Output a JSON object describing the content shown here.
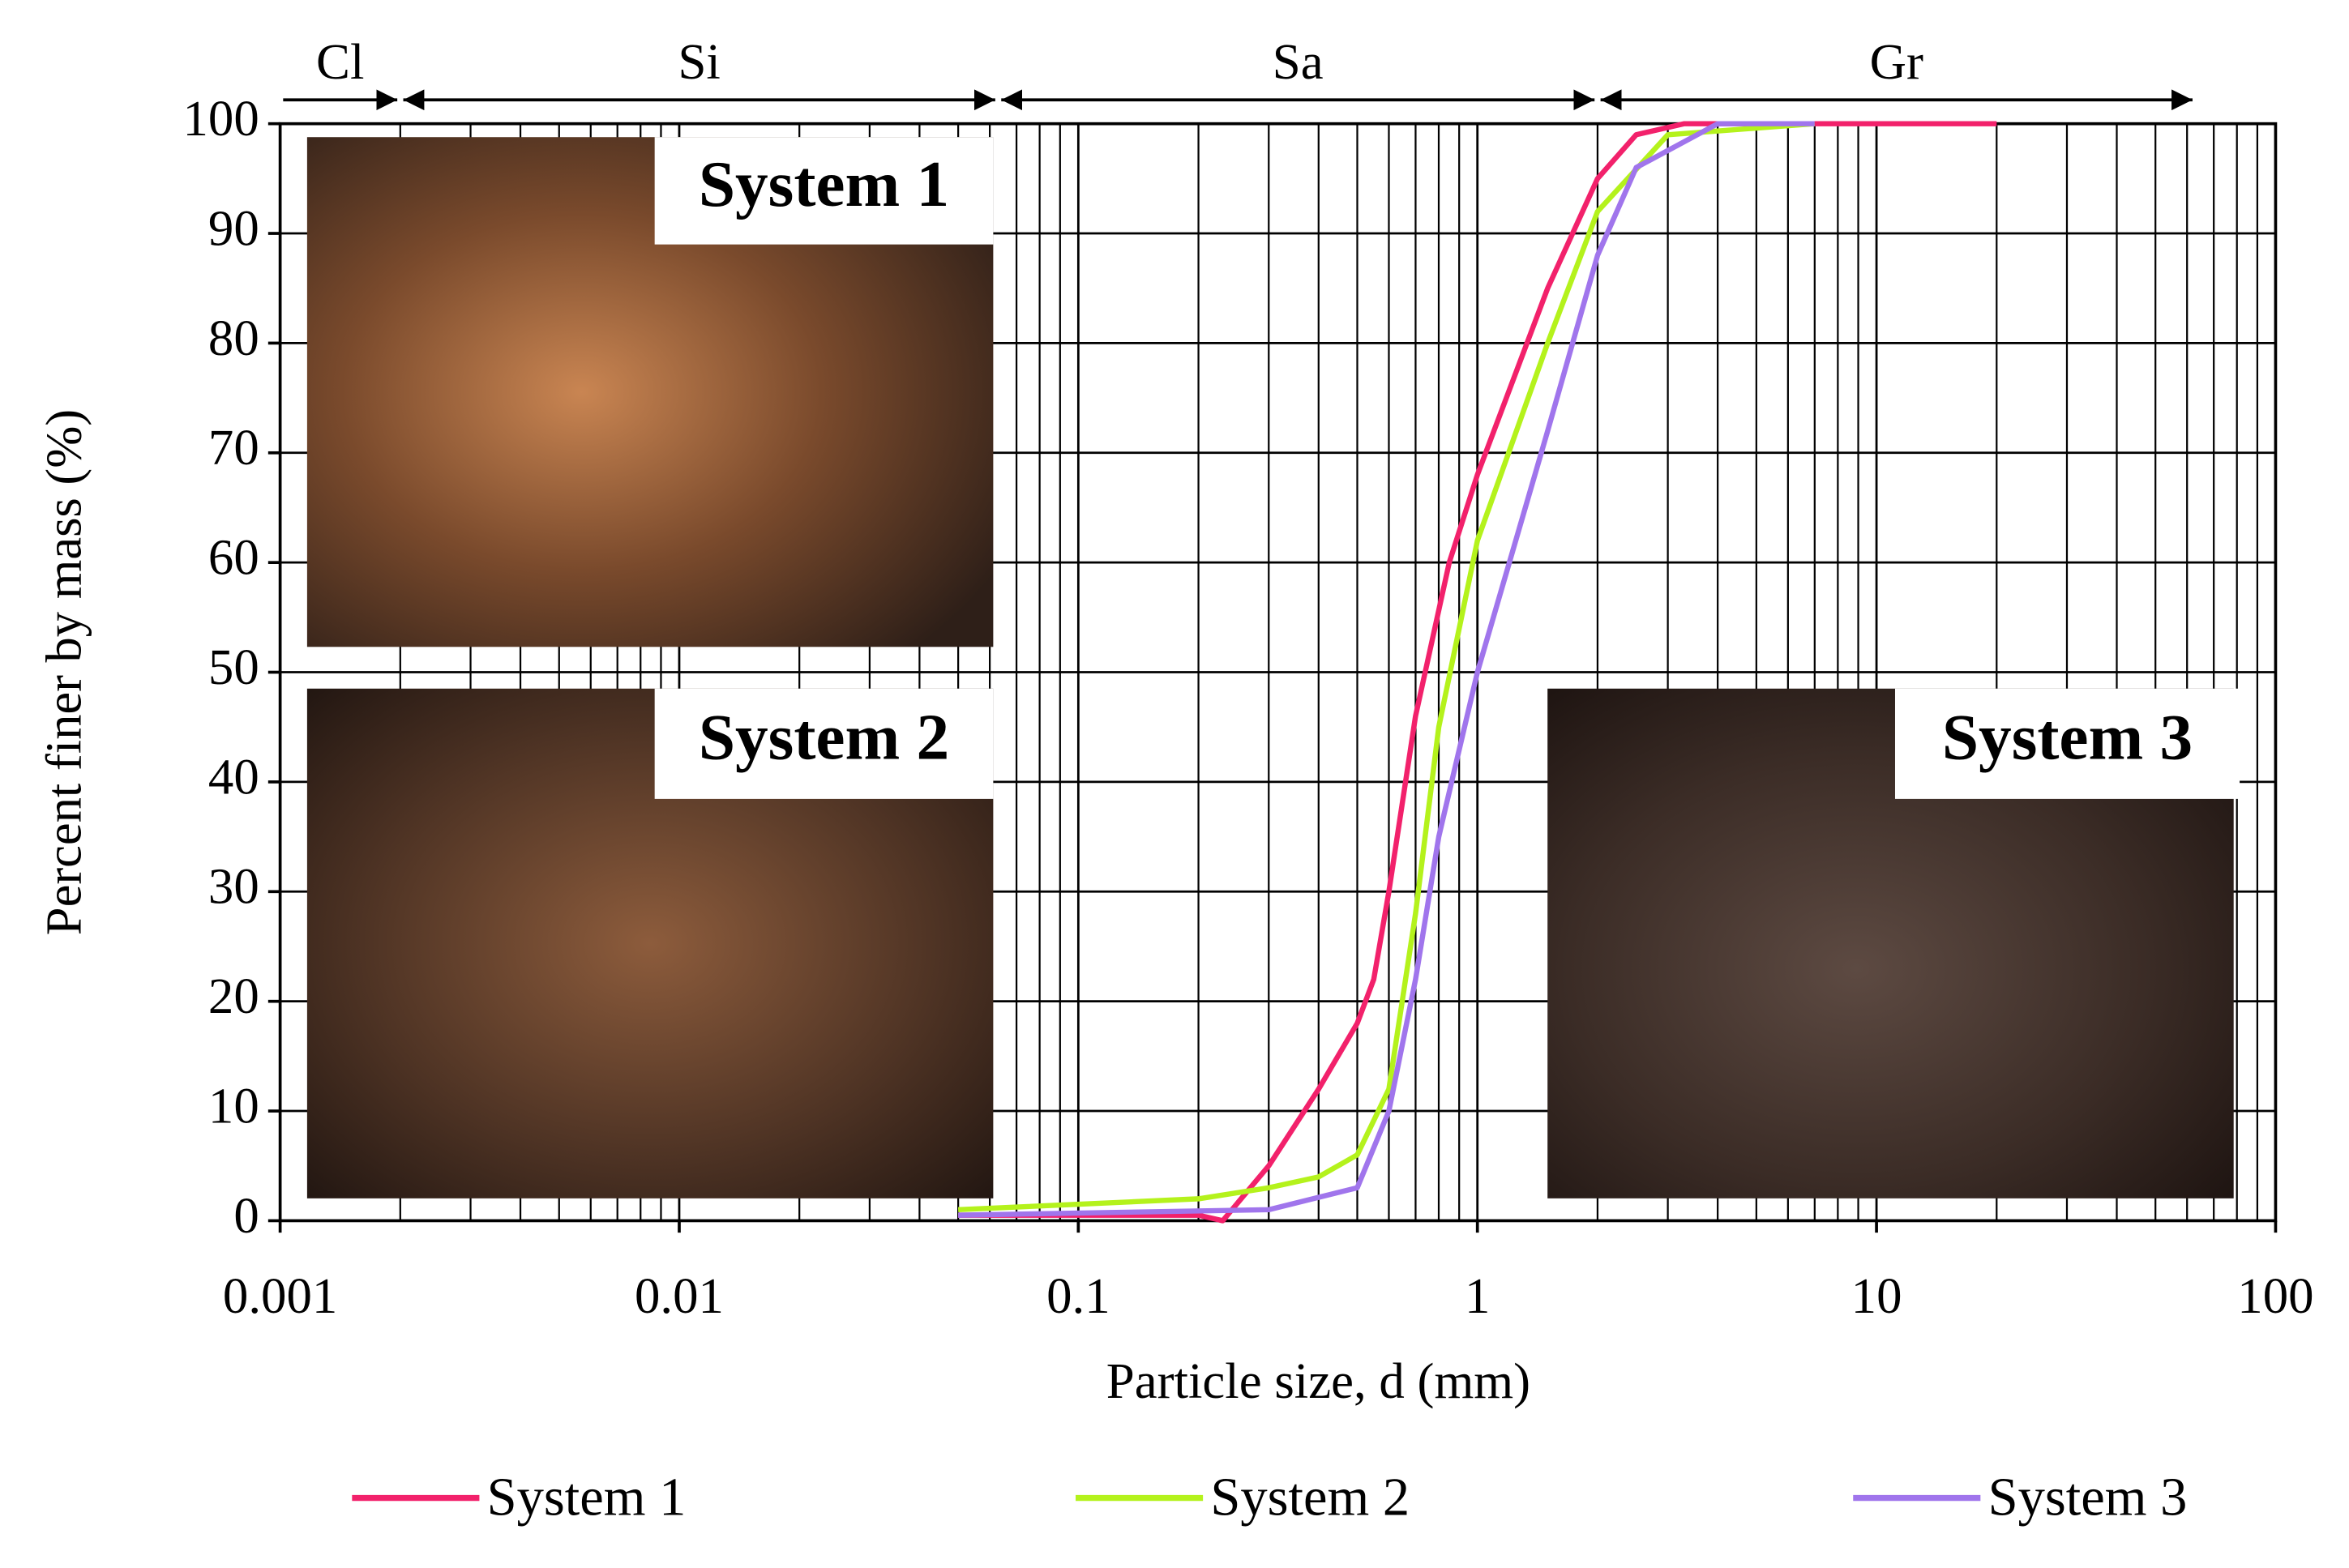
{
  "chart_data": {
    "type": "line",
    "xlabel": "Particle size, d (mm)",
    "ylabel": "Percent finer by mass (%)",
    "xscale": "log",
    "xlim": [
      0.001,
      100
    ],
    "ylim": [
      0,
      100
    ],
    "xticks": [
      0.001,
      0.01,
      0.1,
      1,
      10,
      100
    ],
    "xminorticks": [
      0.002,
      0.003,
      0.004,
      0.005,
      0.006,
      0.007,
      0.008,
      0.009,
      0.02,
      0.03,
      0.04,
      0.05,
      0.06,
      0.07,
      0.08,
      0.09,
      0.2,
      0.3,
      0.4,
      0.5,
      0.6,
      0.7,
      0.8,
      0.9,
      2,
      3,
      4,
      5,
      6,
      7,
      8,
      9,
      20,
      30,
      40,
      50,
      60,
      70,
      80,
      90
    ],
    "yticks": [
      0,
      10,
      20,
      30,
      40,
      50,
      60,
      70,
      80,
      90,
      100
    ],
    "grid": true,
    "legend": "bottom",
    "zones": [
      {
        "label": "Cl",
        "range": [
          0.001,
          0.002
        ]
      },
      {
        "label": "Si",
        "range": [
          0.002,
          0.063
        ]
      },
      {
        "label": "Sa",
        "range": [
          0.063,
          2
        ]
      },
      {
        "label": "Gr",
        "range": [
          2,
          63
        ]
      }
    ],
    "insets": [
      "System 1",
      "System 2",
      "System 3"
    ],
    "series": [
      {
        "name": "System 1",
        "color": "#f2216b",
        "x": [
          0.05,
          0.2,
          0.23,
          0.3,
          0.4,
          0.5,
          0.55,
          0.6,
          0.7,
          0.85,
          1,
          1.5,
          2,
          2.5,
          3.3,
          20
        ],
        "values": [
          0.5,
          0.5,
          0,
          5,
          12,
          18,
          22,
          30,
          46,
          60,
          68,
          85,
          95,
          99,
          100,
          100
        ]
      },
      {
        "name": "System 2",
        "color": "#b4f21c",
        "x": [
          0.05,
          0.2,
          0.3,
          0.4,
          0.5,
          0.6,
          0.7,
          0.8,
          1,
          1.5,
          2,
          3,
          7
        ],
        "values": [
          1,
          2,
          3,
          4,
          6,
          12,
          28,
          45,
          62,
          80,
          92,
          99,
          100
        ]
      },
      {
        "name": "System 3",
        "color": "#a075ec",
        "x": [
          0.05,
          0.3,
          0.5,
          0.6,
          0.7,
          0.8,
          1,
          1.5,
          2,
          2.5,
          4,
          7
        ],
        "values": [
          0.5,
          1,
          3,
          10,
          22,
          35,
          50,
          72,
          88,
          96,
          100,
          100
        ]
      }
    ]
  }
}
